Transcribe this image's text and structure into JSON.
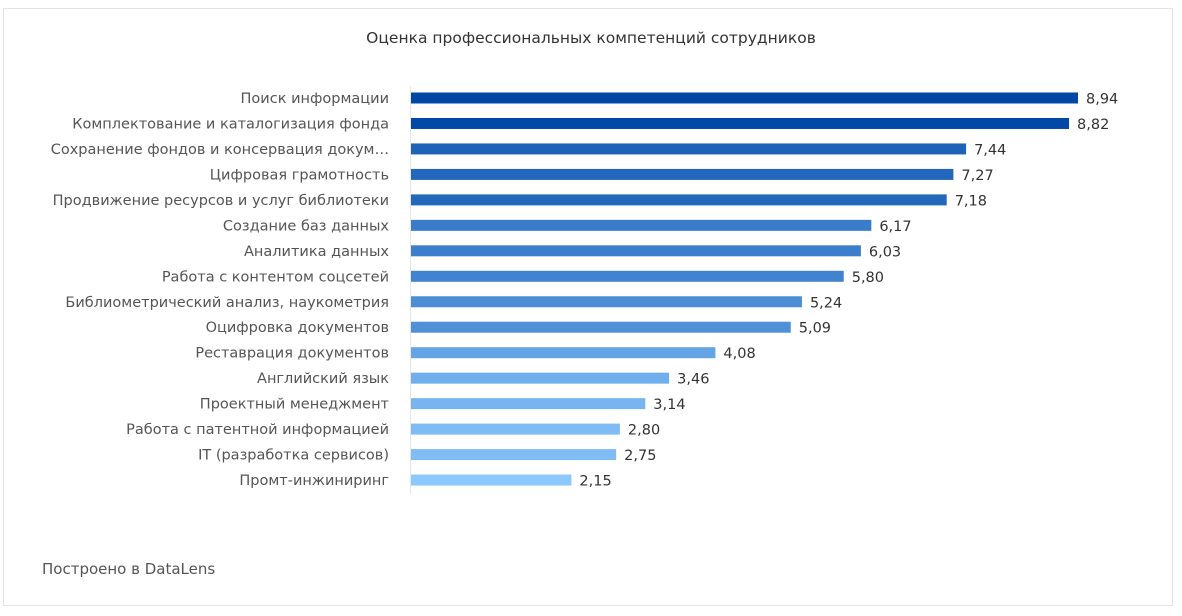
{
  "chart_data": {
    "type": "bar",
    "orientation": "horizontal",
    "title": "Оценка профессиональных компетенций сотрудников",
    "categories": [
      "Поиск информации",
      "Комплектование и каталогизация фонда",
      "Сохранение фондов и консервация докум…",
      "Цифровая грамотность",
      "Продвижение ресурсов и услуг библиотеки",
      "Создание баз данных",
      "Аналитика данных",
      "Работа с контентом соцсетей",
      "Библиометрический анализ, наукометрия",
      "Оцифровка документов",
      "Реставрация документов",
      "Английский язык",
      "Проектный менеджмент",
      "Работа с патентной информацией",
      "IT (разработка сервисов)",
      "Промт-инжиниринг"
    ],
    "values": [
      8.94,
      8.82,
      7.44,
      7.27,
      7.18,
      6.17,
      6.03,
      5.8,
      5.24,
      5.09,
      4.08,
      3.46,
      3.14,
      2.8,
      2.75,
      2.15
    ],
    "data_labels": [
      "8,94",
      "8,82",
      "7,44",
      "7,27",
      "7,18",
      "6,17",
      "6,03",
      "5,80",
      "5,24",
      "5,09",
      "4,08",
      "3,46",
      "3,14",
      "2,80",
      "2,75",
      "2,15"
    ],
    "xlim": [
      0,
      8.94
    ],
    "grid": false,
    "legend": "none",
    "color_scale": {
      "high": "#0047a5",
      "low": "#8cc8fd"
    }
  },
  "footer": "Построено в DataLens"
}
